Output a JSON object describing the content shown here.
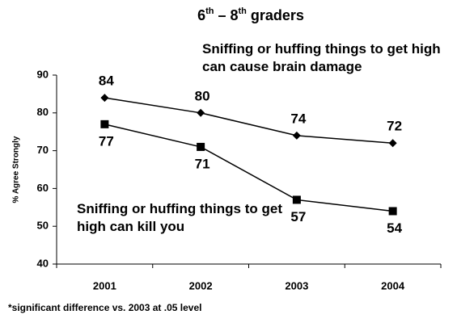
{
  "chart_data": {
    "type": "line",
    "title": "6th – 8th graders",
    "y_label": "% Agree Strongly",
    "footnote": "*significant difference vs. 2003 at .05 level",
    "categories": [
      "2001",
      "2002",
      "2003",
      "2004"
    ],
    "series": [
      {
        "name": "Sniffing or huffing things to get high can cause brain damage",
        "color": "#000000",
        "marker": "diamond",
        "values": [
          84,
          80,
          74,
          72
        ]
      },
      {
        "name": "Sniffing or huffing things to get high can kill you",
        "color": "#000000",
        "marker": "square",
        "values": [
          77,
          71,
          57,
          54
        ]
      }
    ],
    "ylim": [
      40,
      90
    ],
    "yticks": [
      40,
      50,
      60,
      70,
      80,
      90
    ],
    "grid": false
  }
}
